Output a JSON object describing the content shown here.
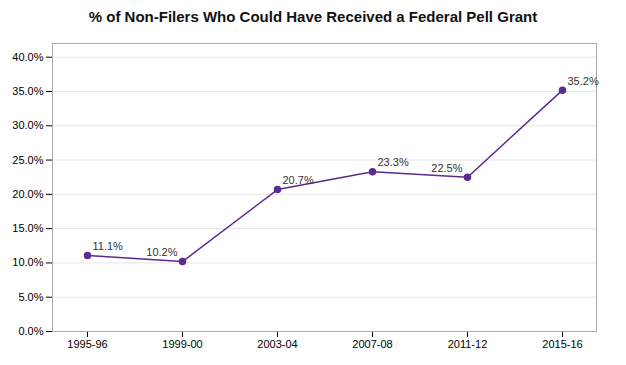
{
  "chart_data": {
    "type": "line",
    "title": "% of Non-Filers Who Could Have Received a Federal Pell Grant",
    "categories": [
      "1995-96",
      "1999-00",
      "2003-04",
      "2007-08",
      "2011-12",
      "2015-16"
    ],
    "values": [
      0.111,
      0.102,
      0.207,
      0.233,
      0.225,
      0.352
    ],
    "value_labels": [
      "11.1%",
      "10.2%",
      "20.7%",
      "23.3%",
      "22.5%",
      "35.2%"
    ],
    "data_labels": true,
    "color": "#5B2C8D",
    "marker": "circle",
    "ylim": [
      0,
      0.42
    ],
    "yticks": [
      {
        "value": 0.0,
        "label": "0.0%"
      },
      {
        "value": 0.05,
        "label": "5.0%"
      },
      {
        "value": 0.1,
        "label": "10.0%"
      },
      {
        "value": 0.15,
        "label": "15.0%"
      },
      {
        "value": 0.2,
        "label": "20.0%"
      },
      {
        "value": 0.25,
        "label": "25.0%"
      },
      {
        "value": 0.3,
        "label": "30.0%"
      },
      {
        "value": 0.35,
        "label": "35.0%"
      },
      {
        "value": 0.4,
        "label": "40.0%"
      }
    ],
    "grid": true
  }
}
